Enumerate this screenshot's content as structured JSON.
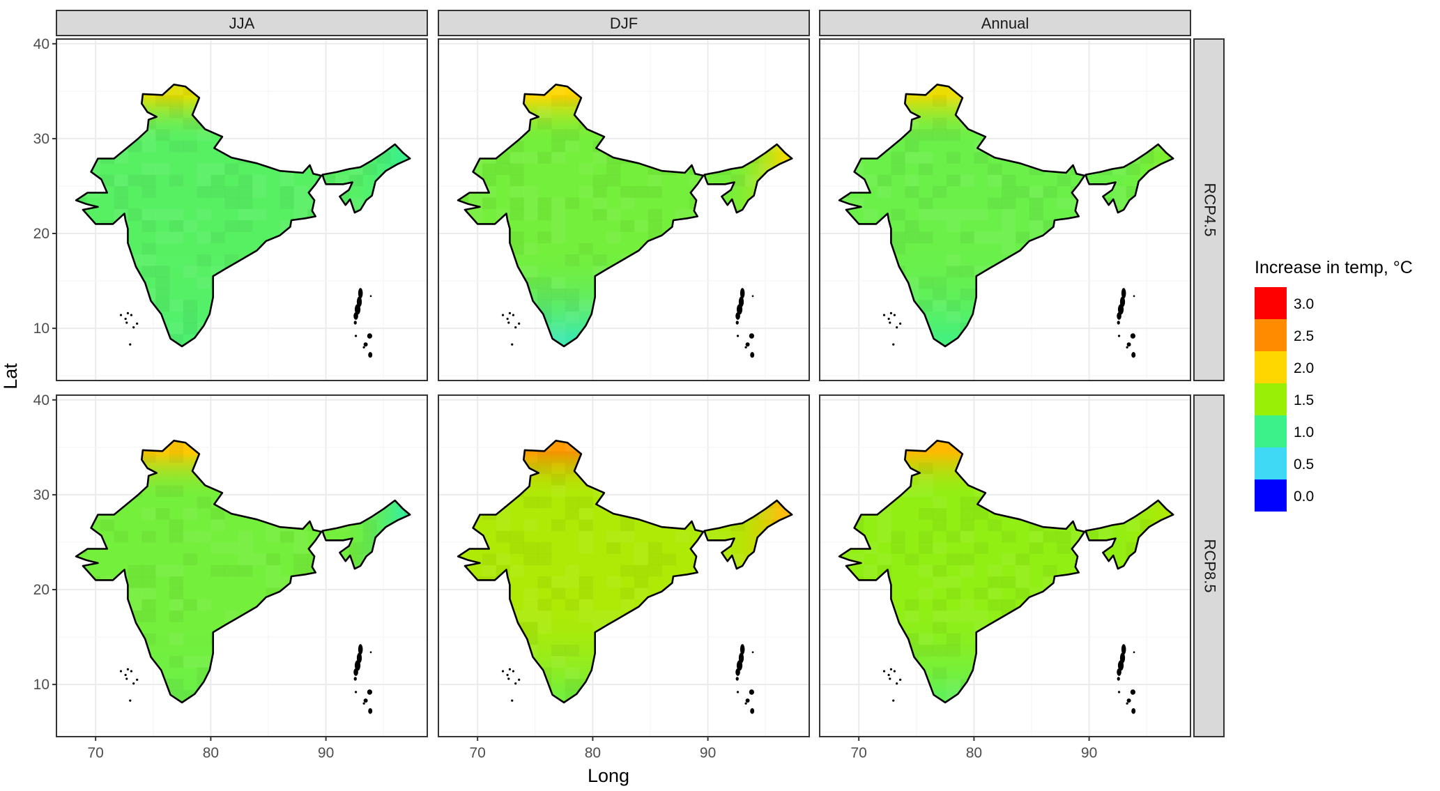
{
  "figure": {
    "x_axis_title": "Long",
    "y_axis_title": "Lat",
    "x_ticks": [
      70,
      80,
      90
    ],
    "y_ticks": [
      10,
      20,
      30,
      40
    ],
    "x_range": [
      66.6,
      98.8
    ],
    "y_range": [
      4.5,
      40.5
    ],
    "columns": [
      {
        "label": "JJA"
      },
      {
        "label": "DJF"
      },
      {
        "label": "Annual"
      }
    ],
    "rows": [
      {
        "label": "RCP4.5"
      },
      {
        "label": "RCP8.5"
      }
    ],
    "panel_fill": {
      "RCP4.5": {
        "JJA": 1.15,
        "DJF": 1.3,
        "Annual": 1.25
      },
      "RCP8.5": {
        "JJA": 1.3,
        "DJF": 1.6,
        "Annual": 1.45
      }
    },
    "panel_hotspots": {
      "RCP4.5": {
        "JJA": {
          "north": 1.85,
          "south": 1.1,
          "east": 1.0
        },
        "DJF": {
          "north": 2.0,
          "south": 0.85,
          "east": 1.9
        },
        "Annual": {
          "north": 1.9,
          "south": 1.05,
          "east": 1.35
        }
      },
      "RCP8.5": {
        "JJA": {
          "north": 2.1,
          "south": 1.25,
          "east": 0.95
        },
        "DJF": {
          "north": 2.4,
          "south": 1.3,
          "east": 2.2
        },
        "Annual": {
          "north": 2.2,
          "south": 1.2,
          "east": 1.6
        }
      }
    }
  },
  "legend": {
    "title": "Increase in temp, °C",
    "items": [
      {
        "label": "3.0",
        "color": "#ff0000"
      },
      {
        "label": "2.5",
        "color": "#ff8c00"
      },
      {
        "label": "2.0",
        "color": "#ffd700"
      },
      {
        "label": "1.5",
        "color": "#9aef07"
      },
      {
        "label": "1.0",
        "color": "#3cf08a"
      },
      {
        "label": "0.5",
        "color": "#40d9f5"
      },
      {
        "label": "0.0",
        "color": "#0000ff"
      }
    ]
  },
  "colors": {
    "panel_border": "#333333",
    "strip_fill": "#d9d9d9",
    "grid_major": "#ebebeb",
    "grid_minor": "#f5f5f5",
    "outline": "#000000"
  }
}
